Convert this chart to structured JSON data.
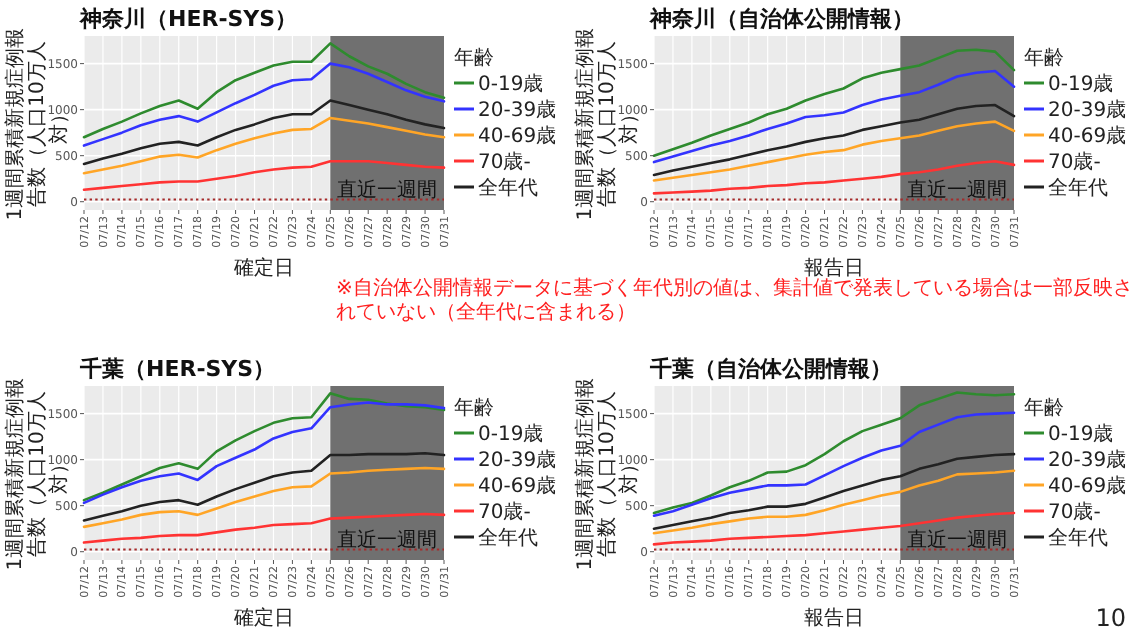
{
  "chart_data": [
    {
      "type": "line",
      "title": "神奈川（HER-SYS）",
      "xlabel": "確定日",
      "ylabel": "1週間累積新規症例報告数（人口10万人対）",
      "legend_title": "年齢",
      "legend": "right",
      "grid": true,
      "ylim": [
        -90,
        1800
      ],
      "yticks": [
        0,
        500,
        1000,
        1500
      ],
      "categories": [
        "07/12",
        "07/13",
        "07/14",
        "07/15",
        "07/16",
        "07/17",
        "07/18",
        "07/19",
        "07/20",
        "07/21",
        "07/22",
        "07/23",
        "07/24",
        "07/25",
        "07/26",
        "07/27",
        "07/28",
        "07/29",
        "07/30",
        "07/31"
      ],
      "series": [
        {
          "name": "0-19歳",
          "color": "#2e8b2e",
          "values": [
            700,
            790,
            870,
            960,
            1040,
            1100,
            1010,
            1190,
            1320,
            1400,
            1480,
            1520,
            1520,
            1720,
            1580,
            1470,
            1390,
            1280,
            1190,
            1130
          ]
        },
        {
          "name": "20-39歳",
          "color": "#3333ff",
          "values": [
            610,
            680,
            750,
            830,
            890,
            930,
            870,
            970,
            1070,
            1160,
            1260,
            1320,
            1330,
            1500,
            1460,
            1390,
            1300,
            1210,
            1140,
            1090
          ]
        },
        {
          "name": "40-69歳",
          "color": "#ffa526",
          "values": [
            310,
            350,
            390,
            440,
            490,
            510,
            480,
            560,
            630,
            690,
            740,
            780,
            790,
            910,
            880,
            850,
            810,
            770,
            730,
            700
          ]
        },
        {
          "name": "70歳-",
          "color": "#ff3333",
          "values": [
            130,
            150,
            170,
            190,
            210,
            220,
            220,
            250,
            280,
            320,
            350,
            370,
            380,
            440,
            440,
            440,
            420,
            400,
            380,
            370
          ]
        },
        {
          "name": "全年代",
          "color": "#222222",
          "values": [
            410,
            470,
            520,
            580,
            630,
            650,
            610,
            700,
            780,
            840,
            910,
            950,
            950,
            1100,
            1050,
            1000,
            950,
            890,
            840,
            800
          ]
        }
      ],
      "ref_lines": [
        {
          "axis": "y",
          "value": 25,
          "color": "#a52a2a",
          "line_style": "dotted"
        }
      ],
      "bands": [
        {
          "axis": "x",
          "from": "07/25",
          "to": "07/31",
          "label": "直近一週間",
          "color": "#707070"
        }
      ]
    },
    {
      "type": "line",
      "title": "神奈川（自治体公開情報）",
      "xlabel": "報告日",
      "ylabel": "1週間累積新規症例報告数（人口10万人対）",
      "legend_title": "年齢",
      "legend": "right",
      "grid": true,
      "ylim": [
        -90,
        1800
      ],
      "yticks": [
        0,
        500,
        1000,
        1500
      ],
      "categories": [
        "07/12",
        "07/13",
        "07/14",
        "07/15",
        "07/16",
        "07/17",
        "07/18",
        "07/19",
        "07/20",
        "07/21",
        "07/22",
        "07/23",
        "07/24",
        "07/25",
        "07/26",
        "07/27",
        "07/28",
        "07/29",
        "07/30",
        "07/31"
      ],
      "series": [
        {
          "name": "0-19歳",
          "color": "#2e8b2e",
          "values": [
            500,
            570,
            640,
            720,
            790,
            860,
            950,
            1010,
            1100,
            1170,
            1230,
            1340,
            1400,
            1440,
            1480,
            1560,
            1640,
            1650,
            1630,
            1430
          ]
        },
        {
          "name": "20-39歳",
          "color": "#3333ff",
          "values": [
            430,
            490,
            550,
            610,
            660,
            720,
            790,
            850,
            920,
            940,
            970,
            1050,
            1110,
            1150,
            1190,
            1270,
            1360,
            1400,
            1420,
            1250
          ]
        },
        {
          "name": "40-69歳",
          "color": "#ffa526",
          "values": [
            230,
            260,
            290,
            320,
            350,
            390,
            430,
            470,
            510,
            540,
            560,
            620,
            660,
            690,
            720,
            770,
            820,
            850,
            870,
            770
          ]
        },
        {
          "name": "70歳-",
          "color": "#ff3333",
          "values": [
            90,
            100,
            110,
            120,
            140,
            150,
            170,
            180,
            200,
            210,
            230,
            250,
            270,
            300,
            320,
            350,
            390,
            420,
            440,
            400
          ]
        },
        {
          "name": "全年代",
          "color": "#222222",
          "values": [
            290,
            340,
            380,
            420,
            460,
            510,
            560,
            600,
            650,
            690,
            720,
            780,
            820,
            860,
            890,
            950,
            1010,
            1040,
            1050,
            930
          ]
        }
      ],
      "ref_lines": [
        {
          "axis": "y",
          "value": 25,
          "color": "#a52a2a",
          "line_style": "dotted"
        }
      ],
      "bands": [
        {
          "axis": "x",
          "from": "07/25",
          "to": "07/31",
          "label": "直近一週間",
          "color": "#707070"
        }
      ]
    },
    {
      "type": "line",
      "title": "千葉（HER-SYS）",
      "xlabel": "確定日",
      "ylabel": "1週間累積新規症例報告数（人口10万人対）",
      "legend_title": "年齢",
      "legend": "right",
      "grid": true,
      "ylim": [
        -90,
        1800
      ],
      "yticks": [
        0,
        500,
        1000,
        1500
      ],
      "categories": [
        "07/12",
        "07/13",
        "07/14",
        "07/15",
        "07/16",
        "07/17",
        "07/18",
        "07/19",
        "07/20",
        "07/21",
        "07/22",
        "07/23",
        "07/24",
        "07/25",
        "07/26",
        "07/27",
        "07/28",
        "07/29",
        "07/30",
        "07/31"
      ],
      "series": [
        {
          "name": "0-19歳",
          "color": "#2e8b2e",
          "values": [
            560,
            640,
            730,
            820,
            910,
            960,
            900,
            1090,
            1210,
            1310,
            1400,
            1450,
            1460,
            1720,
            1660,
            1650,
            1610,
            1580,
            1570,
            1540
          ]
        },
        {
          "name": "20-39歳",
          "color": "#3333ff",
          "values": [
            530,
            620,
            700,
            770,
            820,
            850,
            780,
            930,
            1020,
            1110,
            1230,
            1300,
            1340,
            1570,
            1600,
            1620,
            1600,
            1600,
            1590,
            1560
          ]
        },
        {
          "name": "40-69歳",
          "color": "#ffa526",
          "values": [
            270,
            310,
            350,
            400,
            430,
            440,
            400,
            470,
            540,
            600,
            660,
            700,
            710,
            850,
            860,
            880,
            890,
            900,
            910,
            900
          ]
        },
        {
          "name": "70歳-",
          "color": "#ff3333",
          "values": [
            100,
            120,
            140,
            150,
            170,
            180,
            180,
            210,
            240,
            260,
            290,
            300,
            310,
            360,
            370,
            380,
            390,
            400,
            410,
            400
          ]
        },
        {
          "name": "全年代",
          "color": "#222222",
          "values": [
            340,
            390,
            440,
            500,
            540,
            560,
            510,
            600,
            680,
            750,
            820,
            860,
            880,
            1050,
            1050,
            1060,
            1060,
            1060,
            1070,
            1050
          ]
        }
      ],
      "ref_lines": [
        {
          "axis": "y",
          "value": 25,
          "color": "#a52a2a",
          "line_style": "dotted"
        }
      ],
      "bands": [
        {
          "axis": "x",
          "from": "07/25",
          "to": "07/31",
          "label": "直近一週間",
          "color": "#707070"
        }
      ]
    },
    {
      "type": "line",
      "title": "千葉（自治体公開情報）",
      "xlabel": "報告日",
      "ylabel": "1週間累積新規症例報告数（人口10万人対）",
      "legend_title": "年齢",
      "legend": "right",
      "grid": true,
      "ylim": [
        -90,
        1800
      ],
      "yticks": [
        0,
        500,
        1000,
        1500
      ],
      "categories": [
        "07/12",
        "07/13",
        "07/14",
        "07/15",
        "07/16",
        "07/17",
        "07/18",
        "07/19",
        "07/20",
        "07/21",
        "07/22",
        "07/23",
        "07/24",
        "07/25",
        "07/26",
        "07/27",
        "07/28",
        "07/29",
        "07/30",
        "07/31"
      ],
      "series": [
        {
          "name": "0-19歳",
          "color": "#2e8b2e",
          "values": [
            420,
            480,
            530,
            610,
            700,
            770,
            860,
            870,
            940,
            1060,
            1200,
            1310,
            1380,
            1450,
            1590,
            1660,
            1730,
            1710,
            1700,
            1710
          ]
        },
        {
          "name": "20-39歳",
          "color": "#3333ff",
          "values": [
            390,
            440,
            510,
            580,
            640,
            680,
            720,
            720,
            730,
            830,
            930,
            1020,
            1100,
            1150,
            1300,
            1380,
            1460,
            1490,
            1500,
            1510
          ]
        },
        {
          "name": "40-69歳",
          "color": "#ffa526",
          "values": [
            200,
            230,
            260,
            300,
            330,
            360,
            380,
            380,
            400,
            450,
            510,
            560,
            610,
            650,
            720,
            770,
            840,
            850,
            860,
            880
          ]
        },
        {
          "name": "70歳-",
          "color": "#ff3333",
          "values": [
            80,
            100,
            110,
            120,
            140,
            150,
            160,
            170,
            180,
            200,
            220,
            240,
            260,
            280,
            310,
            340,
            370,
            390,
            410,
            420
          ]
        },
        {
          "name": "全年代",
          "color": "#222222",
          "values": [
            250,
            290,
            330,
            370,
            420,
            450,
            490,
            490,
            520,
            590,
            660,
            720,
            780,
            820,
            900,
            950,
            1010,
            1030,
            1050,
            1060
          ]
        }
      ],
      "ref_lines": [
        {
          "axis": "y",
          "value": 25,
          "color": "#a52a2a",
          "line_style": "dotted"
        }
      ],
      "bands": [
        {
          "axis": "x",
          "from": "07/25",
          "to": "07/31",
          "label": "直近一週間",
          "color": "#707070"
        }
      ],
      "annotations": [
        "※自治体公開情報データに基づく年代別の値は、集計値で発表している場合は一部反映されていない（全年代に含まれる）",
        "10"
      ]
    }
  ]
}
